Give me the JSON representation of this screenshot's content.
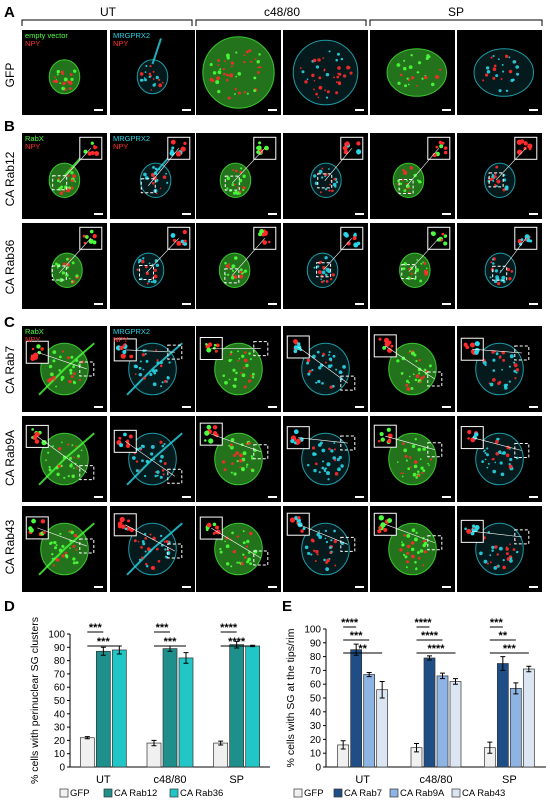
{
  "panels": {
    "A": "A",
    "B": "B",
    "C": "C",
    "D": "D",
    "E": "E"
  },
  "column_groups": [
    "UT",
    "c48/80",
    "SP"
  ],
  "row_labels": {
    "a": "GFP",
    "b1": "CA Rab12",
    "b2": "CA Rab36",
    "c1": "CA Rab7",
    "c2": "CA Rab9A",
    "c3": "CA Rab43"
  },
  "channel_labels": {
    "empty_vector": "empty vector",
    "npy": "NPY",
    "mrgprx2": "MRGPRX2",
    "rabx": "RabX"
  },
  "colors": {
    "green": "#4cff3c",
    "cyan": "#29d6e6",
    "red": "#ff2a2a",
    "gfp_bar": "#f0f0f0",
    "rab12_bar": "#1e8f8a",
    "rab36_bar": "#22c6c6",
    "rab7_bar": "#1f4e86",
    "rab9a_bar": "#8db4e2",
    "rab43_bar": "#dce6f2"
  },
  "chart_data": [
    {
      "type": "bar",
      "panel": "D",
      "ylabel": "% cells with perinuclear SG clusters",
      "ylim": [
        0,
        100
      ],
      "yticks": [
        0,
        10,
        20,
        30,
        40,
        50,
        60,
        70,
        80,
        90,
        100
      ],
      "categories": [
        "UT",
        "c48/80",
        "SP"
      ],
      "series": [
        {
          "name": "GFP",
          "values": [
            22,
            18,
            18
          ],
          "errors": [
            0.8,
            2,
            1.5
          ]
        },
        {
          "name": "CA Rab12",
          "values": [
            87,
            89,
            92
          ],
          "errors": [
            3,
            2,
            2.5
          ]
        },
        {
          "name": "CA Rab36",
          "values": [
            88,
            82,
            91
          ],
          "errors": [
            3,
            4,
            0.5
          ]
        }
      ],
      "significance": [
        {
          "label": "***",
          "group": 0,
          "pair": [
            0,
            1
          ]
        },
        {
          "label": "***",
          "group": 0,
          "pair": [
            0,
            2
          ]
        },
        {
          "label": "***",
          "group": 1,
          "pair": [
            0,
            1
          ]
        },
        {
          "label": "***",
          "group": 1,
          "pair": [
            0,
            2
          ]
        },
        {
          "label": "****",
          "group": 2,
          "pair": [
            0,
            1
          ]
        },
        {
          "label": "****",
          "group": 2,
          "pair": [
            0,
            2
          ]
        }
      ]
    },
    {
      "type": "bar",
      "panel": "E",
      "ylabel": "% cells with SG at the tips/rim",
      "ylim": [
        0,
        100
      ],
      "yticks": [
        0,
        10,
        20,
        30,
        40,
        50,
        60,
        70,
        80,
        90,
        100
      ],
      "categories": [
        "UT",
        "c48/80",
        "SP"
      ],
      "series": [
        {
          "name": "GFP",
          "values": [
            16,
            14,
            14
          ],
          "errors": [
            3,
            3,
            4
          ]
        },
        {
          "name": "CA Rab7",
          "values": [
            85,
            79,
            75
          ],
          "errors": [
            4,
            1.5,
            5
          ]
        },
        {
          "name": "CA Rab9A",
          "values": [
            67,
            66,
            57
          ],
          "errors": [
            1.5,
            2,
            4
          ]
        },
        {
          "name": "CA Rab43",
          "values": [
            56,
            62,
            71
          ],
          "errors": [
            6,
            2,
            2
          ]
        }
      ],
      "significance": [
        {
          "label": "****",
          "group": 0,
          "pair": [
            0,
            1
          ]
        },
        {
          "label": "***",
          "group": 0,
          "pair": [
            0,
            2
          ]
        },
        {
          "label": "**",
          "group": 0,
          "pair": [
            0,
            3
          ]
        },
        {
          "label": "****",
          "group": 1,
          "pair": [
            0,
            1
          ]
        },
        {
          "label": "****",
          "group": 1,
          "pair": [
            0,
            2
          ]
        },
        {
          "label": "****",
          "group": 1,
          "pair": [
            0,
            3
          ]
        },
        {
          "label": "***",
          "group": 2,
          "pair": [
            0,
            1
          ]
        },
        {
          "label": "**",
          "group": 2,
          "pair": [
            0,
            2
          ]
        },
        {
          "label": "***",
          "group": 2,
          "pair": [
            0,
            3
          ]
        }
      ]
    }
  ]
}
